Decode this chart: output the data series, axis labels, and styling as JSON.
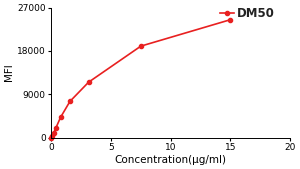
{
  "x": [
    0.0,
    0.098,
    0.195,
    0.39,
    0.781,
    1.563,
    3.125,
    7.5,
    15.0
  ],
  "y": [
    0,
    400,
    900,
    2000,
    4200,
    7500,
    11500,
    19000,
    24500
  ],
  "line_color": "#e82020",
  "marker": "o",
  "marker_size": 3.0,
  "line_width": 1.2,
  "xlabel": "Concentration(μg/ml)",
  "ylabel": "MFI",
  "xlim": [
    0,
    20
  ],
  "ylim": [
    0,
    27000
  ],
  "yticks": [
    0,
    9000,
    18000,
    27000
  ],
  "xticks": [
    0,
    5,
    10,
    15,
    20
  ],
  "legend_label": "DM50",
  "background_color": "#ffffff",
  "xlabel_fontsize": 7.5,
  "ylabel_fontsize": 7.5,
  "tick_fontsize": 6.5,
  "legend_fontsize": 8.5
}
